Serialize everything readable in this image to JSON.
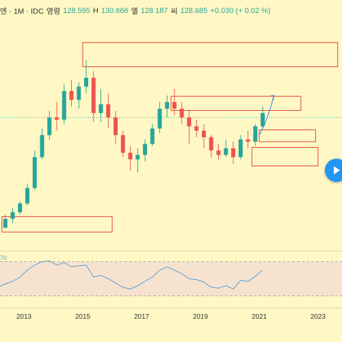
{
  "header": {
    "symbol_fragment": "엔 · 1M · IDC",
    "open_label": "영령",
    "open_value": "128.595",
    "high_label": "H",
    "high_value": "130.666",
    "low_label": "엘",
    "low_value": "128.187",
    "close_label": "씨",
    "close_value": "128.685",
    "change": "+0.030 (+ 0.02 %)"
  },
  "rsi_value_fragment": "70",
  "colors": {
    "background": "#fff8c4",
    "up": "#26a69a",
    "down": "#ef5350",
    "rsi_line": "#5b9bd5",
    "rsi_band": "#f5e3cf",
    "zone_border": "#e53935",
    "arrow": "#4a90d9",
    "play_button": "#2196f3"
  },
  "play_icon": "play-icon",
  "chart_data": {
    "type": "candlestick",
    "x_ticks": [
      "2013",
      "2015",
      "2017",
      "2019",
      "2021",
      "2023"
    ],
    "price_ylim": [
      73,
      125
    ],
    "ohlc": [
      [
        "2012-01",
        77.0,
        79.5,
        76.5,
        78.0
      ],
      [
        "2012-04",
        78.0,
        81.0,
        77.8,
        80.0
      ],
      [
        "2012-07",
        80.0,
        82.5,
        79.0,
        81.5
      ],
      [
        "2012-10",
        81.5,
        84.0,
        81.0,
        83.5
      ],
      [
        "2013-01",
        83.5,
        88.0,
        83.0,
        87.0
      ],
      [
        "2013-04",
        87.0,
        95.5,
        86.5,
        94.0
      ],
      [
        "2013-07",
        94.0,
        100.5,
        93.5,
        99.0
      ],
      [
        "2013-10",
        99.0,
        104.5,
        98.0,
        103.0
      ],
      [
        "2014-01",
        103.0,
        106.5,
        100.0,
        102.5
      ],
      [
        "2014-04",
        102.5,
        110.5,
        101.5,
        109.0
      ],
      [
        "2014-07",
        109.0,
        111.5,
        105.5,
        107.0
      ],
      [
        "2014-10",
        107.0,
        111.0,
        105.0,
        110.0
      ],
      [
        "2015-01",
        110.0,
        116.0,
        108.5,
        112.0
      ],
      [
        "2015-04",
        112.0,
        113.5,
        102.0,
        104.0
      ],
      [
        "2015-07",
        104.0,
        109.5,
        102.0,
        106.0
      ],
      [
        "2015-10",
        106.0,
        108.5,
        100.5,
        103.0
      ],
      [
        "2016-01",
        103.0,
        104.5,
        97.0,
        99.0
      ],
      [
        "2016-04",
        99.0,
        100.0,
        94.0,
        95.0
      ],
      [
        "2016-07",
        95.0,
        96.5,
        91.0,
        93.5
      ],
      [
        "2016-10",
        93.5,
        96.0,
        90.5,
        94.5
      ],
      [
        "2017-01",
        94.5,
        98.0,
        93.0,
        97.0
      ],
      [
        "2017-04",
        97.0,
        101.5,
        96.5,
        100.5
      ],
      [
        "2017-07",
        100.5,
        106.5,
        99.5,
        105.0
      ],
      [
        "2017-10",
        105.0,
        108.0,
        103.0,
        106.5
      ],
      [
        "2018-01",
        106.5,
        109.5,
        103.5,
        105.0
      ],
      [
        "2018-04",
        105.0,
        106.5,
        101.5,
        103.0
      ],
      [
        "2018-07",
        103.0,
        104.5,
        97.0,
        101.0
      ],
      [
        "2018-10",
        101.0,
        102.5,
        98.5,
        100.0
      ],
      [
        "2019-01",
        100.0,
        101.5,
        96.0,
        98.5
      ],
      [
        "2019-04",
        98.5,
        99.0,
        94.0,
        95.5
      ],
      [
        "2019-07",
        95.5,
        97.0,
        93.5,
        94.5
      ],
      [
        "2019-10",
        94.5,
        98.0,
        94.0,
        96.0
      ],
      [
        "2020-01",
        96.0,
        97.5,
        92.5,
        94.0
      ],
      [
        "2020-04",
        94.0,
        99.0,
        93.5,
        98.0
      ],
      [
        "2020-07",
        98.0,
        100.0,
        96.0,
        97.5
      ],
      [
        "2020-10",
        97.5,
        101.5,
        96.5,
        101.0
      ],
      [
        "2021-01",
        101.0,
        105.5,
        100.5,
        104.0
      ]
    ],
    "rsi": [
      40,
      44,
      47,
      52,
      60,
      66,
      70,
      71,
      66,
      69,
      64,
      65,
      66,
      52,
      54,
      50,
      45,
      40,
      38,
      42,
      47,
      52,
      60,
      64,
      60,
      56,
      50,
      49,
      46,
      40,
      39,
      42,
      38,
      48,
      47,
      53,
      60
    ],
    "rsi_ylim": [
      20,
      80
    ],
    "rsi_levels": [
      70,
      30
    ],
    "zones": [
      {
        "from": "2015-01",
        "to": "2023-09",
        "top": 120,
        "bottom": 114.5
      },
      {
        "from": "2018-01",
        "to": "2022-06",
        "top": 107.8,
        "bottom": 104.6
      },
      {
        "from": "2021-01",
        "to": "2022-12",
        "top": 100.2,
        "bottom": 97.5
      },
      {
        "from": "2020-10",
        "to": "2023-01",
        "top": 96.2,
        "bottom": 92.0
      },
      {
        "from": "2012-04",
        "to": "2016-01",
        "top": 80.5,
        "bottom": 77.0
      }
    ],
    "projection": {
      "from": [
        "2021-01",
        99.0
      ],
      "to": [
        "2021-07",
        108.0
      ]
    },
    "current_price_level": 103.0
  }
}
